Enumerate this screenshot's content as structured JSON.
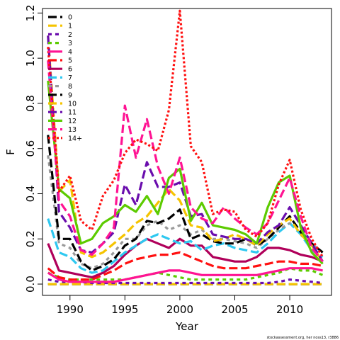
{
  "chart_data": {
    "type": "line",
    "xlabel": "Year",
    "ylabel": "F",
    "xlim": [
      1987.5,
      2013.8
    ],
    "ylim": [
      -0.05,
      1.22
    ],
    "x_ticks": [
      1990,
      1995,
      2000,
      2005,
      2010
    ],
    "y_ticks": [
      0.0,
      0.2,
      0.4,
      0.6,
      0.8,
      1.0,
      1.2
    ],
    "x_tick_labels": [
      "1990",
      "1995",
      "2000",
      "2005",
      "2010"
    ],
    "y_tick_labels": [
      "0.0",
      "0.2",
      "0.4",
      "0.6",
      "0.8",
      "1.0",
      "1.2"
    ],
    "legend_position": "top-left",
    "footnote": "stockassessment.org, her noss13, r3886",
    "x": [
      1988,
      1989,
      1990,
      1991,
      1992,
      1993,
      1994,
      1995,
      1996,
      1997,
      1998,
      1999,
      2000,
      2001,
      2002,
      2003,
      2004,
      2005,
      2006,
      2007,
      2008,
      2009,
      2010,
      2011,
      2012,
      2013
    ],
    "series": [
      {
        "name": "0",
        "color": "#000000",
        "dash": "12 5",
        "values": [
          0,
          0,
          0,
          0,
          0,
          0,
          0,
          0,
          0,
          0,
          0,
          0,
          0,
          0,
          0,
          0,
          0,
          0,
          0,
          0,
          0,
          0,
          0,
          0,
          0,
          0
        ]
      },
      {
        "name": "1",
        "color": "#F5C400",
        "dash": "12 5",
        "values": [
          0,
          0,
          0,
          0,
          0,
          0,
          0,
          0,
          0,
          0,
          0,
          0,
          0,
          0,
          0,
          0,
          0,
          0,
          0,
          0,
          0,
          0,
          0,
          0,
          0,
          0
        ]
      },
      {
        "name": "2",
        "color": "#6A0DAD",
        "dash": "5 5",
        "values": [
          0.02,
          0.01,
          0.01,
          0.01,
          0.005,
          0.005,
          0.005,
          0.005,
          0.005,
          0.005,
          0.005,
          0.005,
          0.005,
          0.005,
          0.005,
          0.005,
          0.005,
          0.005,
          0.005,
          0.005,
          0.005,
          0.01,
          0.02,
          0.015,
          0.01,
          0.005
        ]
      },
      {
        "name": "3",
        "color": "#5CCB00",
        "dash": "5 5",
        "values": [
          0.05,
          0.03,
          0.02,
          0.02,
          0.02,
          0.02,
          0.02,
          0.02,
          0.03,
          0.04,
          0.05,
          0.04,
          0.03,
          0.02,
          0.02,
          0.02,
          0.02,
          0.02,
          0.02,
          0.03,
          0.04,
          0.05,
          0.07,
          0.06,
          0.06,
          0.04
        ]
      },
      {
        "name": "4",
        "color": "#FF1493",
        "dash": "",
        "values": [
          0.05,
          0.02,
          0.01,
          0.01,
          0.01,
          0.01,
          0.01,
          0.02,
          0.03,
          0.04,
          0.05,
          0.06,
          0.06,
          0.05,
          0.04,
          0.04,
          0.04,
          0.04,
          0.04,
          0.04,
          0.05,
          0.06,
          0.07,
          0.07,
          0.07,
          0.06
        ]
      },
      {
        "name": "5",
        "color": "#FF1010",
        "dash": "12 5",
        "values": [
          0.07,
          0.03,
          0.02,
          0.02,
          0.02,
          0.04,
          0.06,
          0.09,
          0.11,
          0.12,
          0.13,
          0.13,
          0.14,
          0.12,
          0.1,
          0.08,
          0.07,
          0.07,
          0.07,
          0.08,
          0.09,
          0.1,
          0.1,
          0.09,
          0.09,
          0.08
        ]
      },
      {
        "name": "6",
        "color": "#B0005A",
        "dash": "",
        "values": [
          0.18,
          0.06,
          0.05,
          0.04,
          0.03,
          0.05,
          0.08,
          0.13,
          0.17,
          0.2,
          0.18,
          0.16,
          0.2,
          0.17,
          0.17,
          0.12,
          0.11,
          0.1,
          0.1,
          0.12,
          0.16,
          0.16,
          0.15,
          0.13,
          0.12,
          0.1
        ]
      },
      {
        "name": "7",
        "color": "#2EC8F0",
        "dash": "12 5",
        "values": [
          0.29,
          0.14,
          0.12,
          0.07,
          0.05,
          0.06,
          0.1,
          0.14,
          0.17,
          0.2,
          0.22,
          0.2,
          0.18,
          0.19,
          0.15,
          0.17,
          0.18,
          0.16,
          0.15,
          0.14,
          0.18,
          0.23,
          0.27,
          0.22,
          0.15,
          0.12
        ]
      },
      {
        "name": "8",
        "color": "#9A9A9A",
        "dash": "5 5",
        "values": [
          0.57,
          0.18,
          0.16,
          0.09,
          0.07,
          0.09,
          0.14,
          0.2,
          0.2,
          0.26,
          0.28,
          0.24,
          0.26,
          0.22,
          0.24,
          0.2,
          0.2,
          0.19,
          0.18,
          0.16,
          0.2,
          0.24,
          0.27,
          0.24,
          0.18,
          0.14
        ]
      },
      {
        "name": "9",
        "color": "#000000",
        "dash": "12 5",
        "values": [
          0.66,
          0.2,
          0.2,
          0.1,
          0.06,
          0.08,
          0.11,
          0.17,
          0.2,
          0.28,
          0.27,
          0.29,
          0.33,
          0.2,
          0.22,
          0.19,
          0.18,
          0.18,
          0.2,
          0.17,
          0.2,
          0.25,
          0.3,
          0.23,
          0.18,
          0.14
        ]
      },
      {
        "name": "10",
        "color": "#F5C400",
        "dash": "12 5",
        "values": [
          1.1,
          0.41,
          0.46,
          0.14,
          0.12,
          0.14,
          0.18,
          0.22,
          0.27,
          0.3,
          0.36,
          0.42,
          0.37,
          0.26,
          0.25,
          0.19,
          0.2,
          0.22,
          0.2,
          0.17,
          0.22,
          0.26,
          0.29,
          0.22,
          0.17,
          0.1
        ]
      },
      {
        "name": "11",
        "color": "#6A0DAD",
        "dash": "12 5",
        "values": [
          1.1,
          0.32,
          0.25,
          0.15,
          0.14,
          0.18,
          0.23,
          0.44,
          0.35,
          0.54,
          0.43,
          0.43,
          0.45,
          0.3,
          0.31,
          0.22,
          0.21,
          0.2,
          0.2,
          0.18,
          0.23,
          0.26,
          0.34,
          0.26,
          0.18,
          0.1
        ]
      },
      {
        "name": "12",
        "color": "#5CCB00",
        "dash": "",
        "values": [
          0.9,
          0.42,
          0.38,
          0.18,
          0.2,
          0.27,
          0.3,
          0.35,
          0.32,
          0.39,
          0.31,
          0.47,
          0.51,
          0.28,
          0.36,
          0.26,
          0.25,
          0.24,
          0.22,
          0.18,
          0.34,
          0.45,
          0.48,
          0.25,
          0.14,
          0.09
        ]
      },
      {
        "name": "13",
        "color": "#FF1493",
        "dash": "12 5",
        "values": [
          0.99,
          0.37,
          0.3,
          0.15,
          0.13,
          0.18,
          0.25,
          0.79,
          0.56,
          0.73,
          0.52,
          0.4,
          0.56,
          0.34,
          0.29,
          0.27,
          0.34,
          0.29,
          0.25,
          0.22,
          0.27,
          0.37,
          0.47,
          0.3,
          0.16,
          0.1
        ]
      },
      {
        "name": "14+",
        "color": "#FF1010",
        "dash": "3 3",
        "values": [
          1.05,
          0.41,
          0.48,
          0.28,
          0.24,
          0.39,
          0.46,
          0.58,
          0.64,
          0.62,
          0.59,
          0.77,
          1.21,
          0.61,
          0.54,
          0.31,
          0.33,
          0.32,
          0.24,
          0.21,
          0.27,
          0.44,
          0.55,
          0.33,
          0.2,
          0.12
        ]
      }
    ]
  }
}
